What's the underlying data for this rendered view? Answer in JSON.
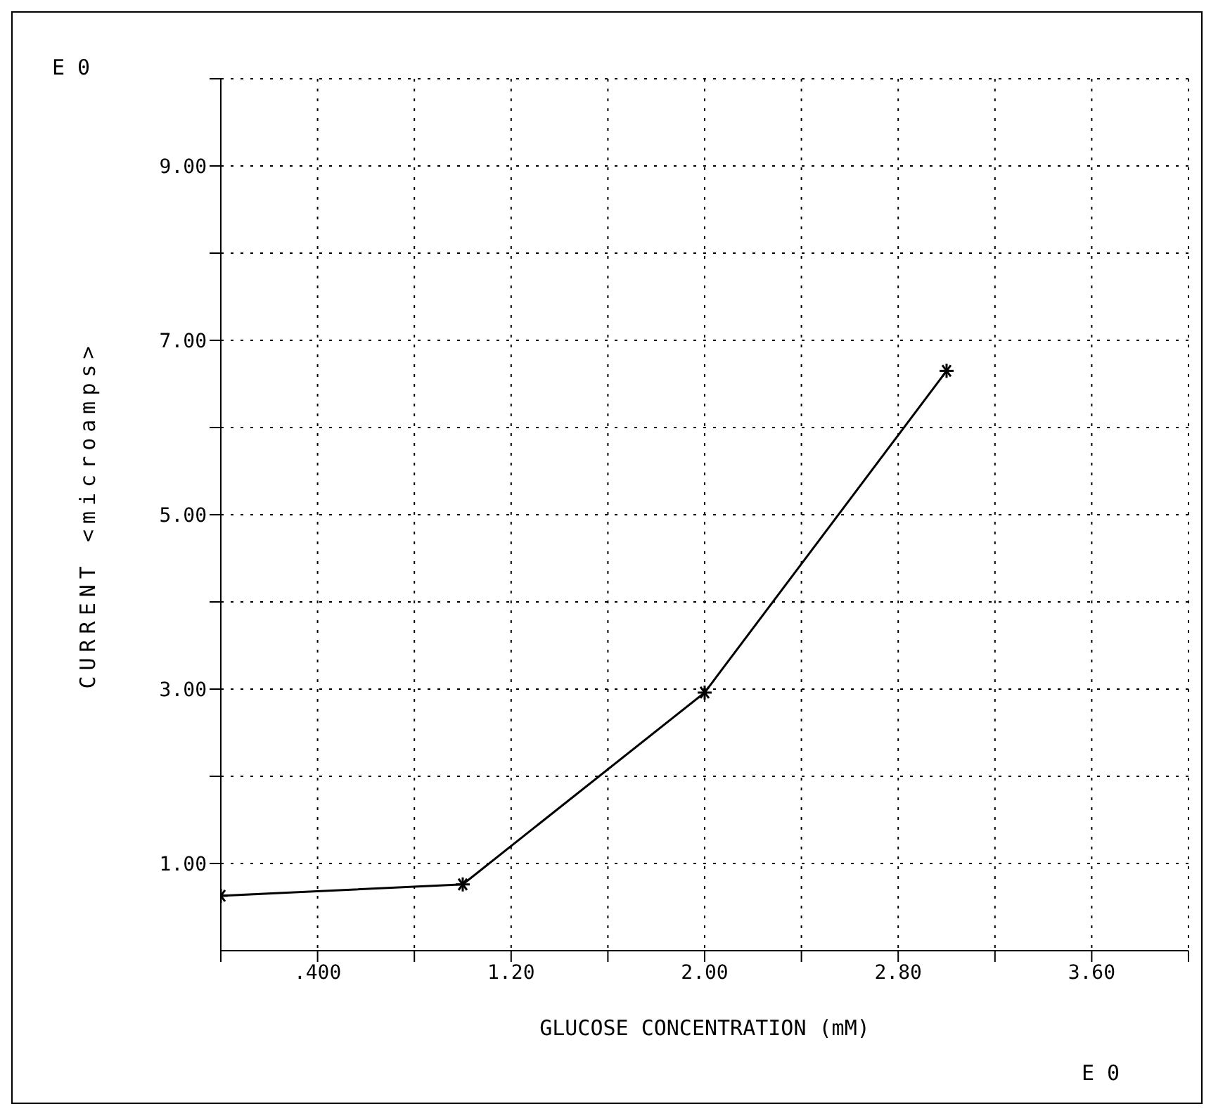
{
  "chart_data": {
    "type": "line",
    "xlabel": "GLUCOSE CONCENTRATION (mM)",
    "ylabel": "CURRENT <microamps>",
    "annotations": [
      "E 0",
      "E 0"
    ],
    "x": [
      0,
      1.0,
      2.0,
      3.0
    ],
    "series": [
      {
        "color": "#000000",
        "values": [
          0.63,
          0.76,
          2.96,
          6.65
        ]
      }
    ],
    "xlim": [
      0,
      4
    ],
    "xticks": [
      {
        "value": 0,
        "label": null
      },
      {
        "value": 0.4,
        "label": ".400"
      },
      {
        "value": 0.8,
        "label": null
      },
      {
        "value": 1.2,
        "label": "1.20"
      },
      {
        "value": 1.6,
        "label": null
      },
      {
        "value": 2.0,
        "label": "2.00"
      },
      {
        "value": 2.4,
        "label": null
      },
      {
        "value": 2.8,
        "label": "2.80"
      },
      {
        "value": 3.2,
        "label": null
      },
      {
        "value": 3.6,
        "label": "3.60"
      },
      {
        "value": 4.0,
        "label": null
      }
    ],
    "ylim": [
      0,
      10
    ],
    "yticks": [
      {
        "value": 1,
        "label": "1.00"
      },
      {
        "value": 2,
        "label": null
      },
      {
        "value": 3,
        "label": "3.00"
      },
      {
        "value": 4,
        "label": null
      },
      {
        "value": 5,
        "label": "5.00"
      },
      {
        "value": 6,
        "label": null
      },
      {
        "value": 7,
        "label": "7.00"
      },
      {
        "value": 8,
        "label": null
      },
      {
        "value": 9,
        "label": "9.00"
      },
      {
        "value": 10,
        "label": null
      }
    ],
    "grid": true,
    "marker": "cross",
    "line_style": "solid",
    "legend": false
  }
}
